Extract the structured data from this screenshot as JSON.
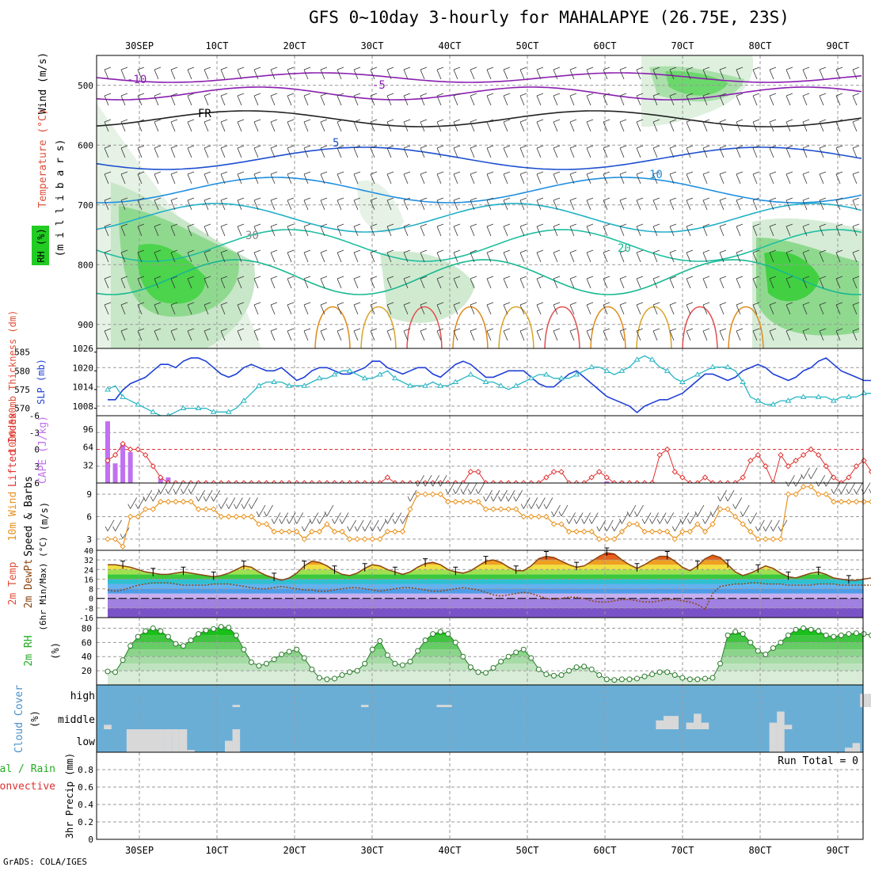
{
  "title": "GFS 0~10day 3-hourly for MAHALAPYE (26.75E, 23S)",
  "credit": "GrADS: COLA/IGES",
  "date_ticks": [
    "30SEP",
    "1OCT",
    "2OCT",
    "3OCT",
    "4OCT",
    "5OCT",
    "6OCT",
    "7OCT",
    "8OCT",
    "9OCT"
  ],
  "date_tick_labels": [
    "30SEP",
    "10CT",
    "20CT",
    "30CT",
    "40CT",
    "50CT",
    "60CT",
    "70CT",
    "80CT",
    "90CT"
  ],
  "colors": {
    "grid": "#9a9a9a",
    "rh_green": "#22cc22",
    "slp": "#1f3fd6",
    "thickness": "#27b5c4",
    "lifted_index": "#e03030",
    "cape": "#c070f0",
    "wind": "#e8921e",
    "rh2m": "#00cc00",
    "cloud_bg": "#6aaed6",
    "cloud_fill": "#d8d8d8"
  },
  "panels": {
    "upper": {
      "labels": {
        "wind": "Wind (m/s)",
        "temp": "Temperature (°C)",
        "rh": "RH (%)",
        "pressure": "(m i l l i b a r s)"
      },
      "y_ticks": [
        "500",
        "600",
        "700",
        "800",
        "900"
      ],
      "contour_labels": [
        "-10",
        "-5",
        "FR",
        "5",
        "10",
        "20",
        "30"
      ]
    },
    "slp": {
      "labels": {
        "thickness": "1000-500mb Thickness (dm)",
        "slp": "SLP (mb)"
      },
      "left_ticks": [
        "585",
        "580",
        "575",
        "570"
      ],
      "right_ticks": [
        "1026",
        "1020",
        "1014",
        "1008"
      ]
    },
    "cape": {
      "labels": {
        "li": "Lifted Index",
        "cape": "CAPE (J/kg)"
      },
      "left_ticks": [
        "-6",
        "-3",
        "0",
        "3",
        "6"
      ],
      "right_ticks": [
        "96",
        "64",
        "32"
      ]
    },
    "wind": {
      "labels": {
        "main": "10m Wind",
        "speed": "Speed & Barbs",
        "unit": "(m/s)"
      },
      "y_ticks": [
        "9",
        "6",
        "3"
      ]
    },
    "temp": {
      "labels": {
        "temp": "2m Temp",
        "dew": "2m DewPt",
        "note": "(6hr Min/Max) (°C)"
      },
      "y_ticks": [
        "40",
        "32",
        "24",
        "16",
        "8",
        "0",
        "-8",
        "-16"
      ]
    },
    "rh": {
      "labels": {
        "main": "2m RH",
        "unit": "(%)"
      },
      "y_ticks": [
        "80",
        "60",
        "40",
        "20"
      ]
    },
    "cloud": {
      "labels": {
        "main": "Cloud Cover",
        "unit": "(%)"
      },
      "levels": [
        "high",
        "middle",
        "low"
      ]
    },
    "precip": {
      "labels": {
        "total": "Total / Rain",
        "conv": "Convective",
        "precip": "3hr Precip (mm)"
      },
      "y_ticks": [
        "0.8",
        "0.6",
        "0.4",
        "0.2",
        "0"
      ],
      "run_total": "Run Total = 0"
    }
  },
  "chart_data": [
    {
      "type": "line",
      "name": "SLP and thickness",
      "x_start": "2023-09-29 12Z",
      "x_step_hours": 3,
      "series": [
        {
          "name": "SLP (mb)",
          "ylim": [
            1005,
            1026
          ],
          "values": [
            1010,
            1010,
            1013,
            1015,
            1016,
            1017,
            1019,
            1021,
            1021,
            1020,
            1022,
            1023,
            1023,
            1022,
            1020,
            1018,
            1017,
            1018,
            1020,
            1021,
            1020,
            1019,
            1019,
            1020,
            1018,
            1016,
            1017,
            1019,
            1020,
            1020,
            1019,
            1018,
            1018,
            1019,
            1020,
            1022,
            1022,
            1020,
            1019,
            1018,
            1019,
            1020,
            1020,
            1018,
            1017,
            1019,
            1021,
            1022,
            1021,
            1019,
            1017,
            1017,
            1018,
            1019,
            1019,
            1019,
            1017,
            1015,
            1014,
            1014,
            1016,
            1018,
            1019,
            1017,
            1015,
            1013,
            1011,
            1010,
            1009,
            1008,
            1006,
            1008,
            1009,
            1010,
            1010,
            1011,
            1012,
            1014,
            1016,
            1018,
            1018,
            1017,
            1016,
            1017,
            1019,
            1020,
            1021,
            1020,
            1018,
            1017,
            1016,
            1017,
            1019,
            1020,
            1022,
            1023,
            1021,
            1019,
            1018,
            1017,
            1016,
            1016
          ]
        },
        {
          "name": "1000-500mb Thickness (dm)",
          "ylim": [
            568,
            586
          ],
          "values": [
            575,
            576,
            573,
            572,
            571,
            570,
            569,
            568,
            568,
            569,
            570,
            570,
            570,
            570,
            569,
            569,
            569,
            570,
            572,
            574,
            576,
            577,
            577,
            577,
            576,
            576,
            576,
            577,
            578,
            578,
            579,
            580,
            580,
            579,
            578,
            578,
            579,
            580,
            578,
            577,
            576,
            576,
            576,
            577,
            576,
            576,
            577,
            578,
            579,
            578,
            577,
            577,
            576,
            575,
            576,
            577,
            578,
            579,
            579,
            578,
            578,
            578,
            579,
            580,
            581,
            581,
            580,
            579,
            580,
            581,
            583,
            584,
            583,
            581,
            580,
            578,
            577,
            578,
            579,
            580,
            581,
            581,
            581,
            580,
            577,
            573,
            572,
            571,
            571,
            572,
            572,
            573,
            573,
            573,
            573,
            573,
            572,
            573,
            573,
            573,
            574,
            574
          ]
        }
      ]
    },
    {
      "type": "line",
      "name": "Lifted Index and CAPE",
      "series": [
        {
          "name": "Lifted Index",
          "ylim": [
            6,
            -6
          ],
          "values": [
            2,
            1,
            -1,
            0,
            0,
            1,
            3,
            5,
            6,
            6,
            6,
            6,
            6,
            6,
            6,
            6,
            6,
            6,
            6,
            6,
            6,
            6,
            6,
            6,
            6,
            6,
            6,
            6,
            6,
            6,
            6,
            6,
            6,
            6,
            6,
            6,
            6,
            5,
            6,
            6,
            6,
            6,
            6,
            6,
            6,
            6,
            6,
            6,
            4,
            4,
            6,
            6,
            6,
            6,
            6,
            6,
            6,
            6,
            5,
            4,
            4,
            6,
            6,
            6,
            5,
            4,
            5,
            6,
            6,
            6,
            6,
            6,
            6,
            1,
            0,
            4,
            5,
            6,
            6,
            5,
            6,
            6,
            6,
            6,
            5,
            2,
            1,
            3,
            6,
            1,
            3,
            2,
            1,
            0,
            1,
            3,
            5,
            6,
            5,
            3,
            2,
            4
          ]
        },
        {
          "name": "CAPE (J/kg)",
          "ylim": [
            0,
            120
          ],
          "bars": [
            [
              0,
              110
            ],
            [
              1,
              35
            ],
            [
              2,
              70
            ],
            [
              3,
              55
            ],
            [
              7,
              8
            ],
            [
              8,
              10
            ],
            [
              66,
              3
            ],
            [
              68,
              3
            ]
          ]
        }
      ]
    },
    {
      "type": "line",
      "name": "10m Wind Speed",
      "ylim": [
        1.5,
        10.5
      ],
      "values": [
        3,
        3,
        2,
        6,
        6,
        7,
        7,
        8,
        8,
        8,
        8,
        8,
        7,
        7,
        7,
        6,
        6,
        6,
        6,
        6,
        5,
        5,
        4,
        4,
        4,
        4,
        3,
        4,
        4,
        5,
        4,
        4,
        3,
        3,
        3,
        3,
        3,
        4,
        4,
        4,
        7,
        9,
        9,
        9,
        9,
        8,
        8,
        8,
        8,
        8,
        7,
        7,
        7,
        7,
        7,
        6,
        6,
        6,
        6,
        5,
        5,
        4,
        4,
        4,
        4,
        3,
        3,
        3,
        4,
        5,
        5,
        4,
        4,
        4,
        4,
        3,
        4,
        4,
        5,
        4,
        5,
        7,
        7,
        6,
        5,
        4,
        3,
        3,
        3,
        3,
        9,
        9,
        10,
        10,
        9,
        9,
        8,
        8,
        8,
        8,
        8,
        8
      ]
    },
    {
      "type": "area",
      "name": "2m Temperature and Dew Point",
      "ylim": [
        -16,
        40
      ],
      "series": [
        {
          "name": "2m Temp",
          "values": [
            28,
            28,
            27,
            26,
            24,
            22,
            21,
            20,
            20,
            21,
            22,
            21,
            20,
            19,
            18,
            19,
            21,
            24,
            27,
            26,
            22,
            19,
            17,
            15,
            17,
            21,
            27,
            31,
            30,
            27,
            23,
            20,
            19,
            21,
            25,
            28,
            27,
            24,
            22,
            20,
            22,
            26,
            29,
            30,
            28,
            24,
            22,
            21,
            23,
            27,
            31,
            32,
            30,
            26,
            23,
            23,
            27,
            33,
            35,
            34,
            31,
            28,
            26,
            27,
            31,
            35,
            38,
            37,
            32,
            28,
            25,
            28,
            32,
            35,
            35,
            31,
            26,
            23,
            27,
            33,
            36,
            34,
            28,
            22,
            19,
            21,
            24,
            27,
            25,
            21,
            18,
            17,
            19,
            21,
            22,
            20,
            17,
            16,
            15,
            15,
            16,
            17
          ]
        },
        {
          "name": "2m DewPt",
          "values": [
            7,
            6,
            7,
            9,
            11,
            12,
            13,
            13,
            13,
            12,
            11,
            11,
            11,
            11,
            12,
            12,
            12,
            11,
            10,
            9,
            8,
            8,
            9,
            10,
            9,
            8,
            7,
            7,
            6,
            6,
            7,
            8,
            9,
            9,
            8,
            7,
            6,
            7,
            8,
            9,
            9,
            8,
            7,
            6,
            6,
            7,
            8,
            9,
            8,
            7,
            5,
            3,
            2,
            3,
            4,
            5,
            4,
            2,
            0,
            -1,
            0,
            1,
            1,
            0,
            -2,
            -3,
            -3,
            -2,
            -1,
            -1,
            -2,
            -3,
            -3,
            -2,
            -1,
            -1,
            -2,
            -3,
            -5,
            -9,
            4,
            10,
            11,
            12,
            12,
            13,
            13,
            12,
            12,
            12,
            11,
            11,
            11,
            11,
            12,
            12,
            12,
            11,
            11,
            11,
            11,
            11
          ]
        }
      ]
    },
    {
      "type": "area",
      "name": "2m RH",
      "ylim": [
        0,
        95
      ],
      "values": [
        19,
        18,
        35,
        55,
        68,
        76,
        80,
        76,
        68,
        58,
        55,
        63,
        72,
        77,
        79,
        82,
        81,
        70,
        50,
        32,
        27,
        30,
        36,
        43,
        47,
        50,
        38,
        22,
        10,
        8,
        9,
        14,
        18,
        20,
        30,
        50,
        62,
        42,
        30,
        28,
        33,
        48,
        63,
        72,
        75,
        72,
        60,
        40,
        25,
        18,
        17,
        24,
        33,
        40,
        46,
        50,
        38,
        22,
        15,
        13,
        14,
        20,
        25,
        26,
        22,
        14,
        8,
        7,
        8,
        8,
        9,
        12,
        15,
        18,
        18,
        14,
        10,
        8,
        8,
        9,
        10,
        30,
        70,
        75,
        72,
        60,
        48,
        43,
        52,
        60,
        70,
        78,
        80,
        78,
        76,
        70,
        68,
        70,
        72,
        73,
        72,
        70
      ]
    },
    {
      "type": "area",
      "name": "Cloud Cover",
      "series": [
        {
          "name": "low",
          "values": [
            {
              "i": 3,
              "v": 100
            },
            {
              "i": 4,
              "v": 100
            },
            {
              "i": 5,
              "v": 100
            },
            {
              "i": 6,
              "v": 100
            },
            {
              "i": 7,
              "v": 100
            },
            {
              "i": 8,
              "v": 100
            },
            {
              "i": 9,
              "v": 100
            },
            {
              "i": 10,
              "v": 100
            },
            {
              "i": 11,
              "v": 10
            },
            {
              "i": 16,
              "v": 50
            },
            {
              "i": 17,
              "v": 100
            },
            {
              "i": 88,
              "v": 100
            },
            {
              "i": 89,
              "v": 100
            },
            {
              "i": 98,
              "v": 20
            },
            {
              "i": 99,
              "v": 40
            }
          ]
        },
        {
          "name": "middle",
          "values": [
            {
              "i": 0,
              "v": 20
            },
            {
              "i": 73,
              "v": 40
            },
            {
              "i": 74,
              "v": 60
            },
            {
              "i": 75,
              "v": 60
            },
            {
              "i": 77,
              "v": 30
            },
            {
              "i": 78,
              "v": 70
            },
            {
              "i": 79,
              "v": 30
            },
            {
              "i": 88,
              "v": 30
            },
            {
              "i": 89,
              "v": 80
            },
            {
              "i": 90,
              "v": 20
            }
          ]
        },
        {
          "name": "high",
          "values": [
            {
              "i": 17,
              "v": 10
            },
            {
              "i": 34,
              "v": 10
            },
            {
              "i": 44,
              "v": 10
            },
            {
              "i": 45,
              "v": 10
            },
            {
              "i": 100,
              "v": 60
            },
            {
              "i": 101,
              "v": 60
            }
          ]
        }
      ]
    },
    {
      "type": "bar",
      "name": "3hr Precip",
      "ylim": [
        0,
        1
      ],
      "values": []
    }
  ]
}
